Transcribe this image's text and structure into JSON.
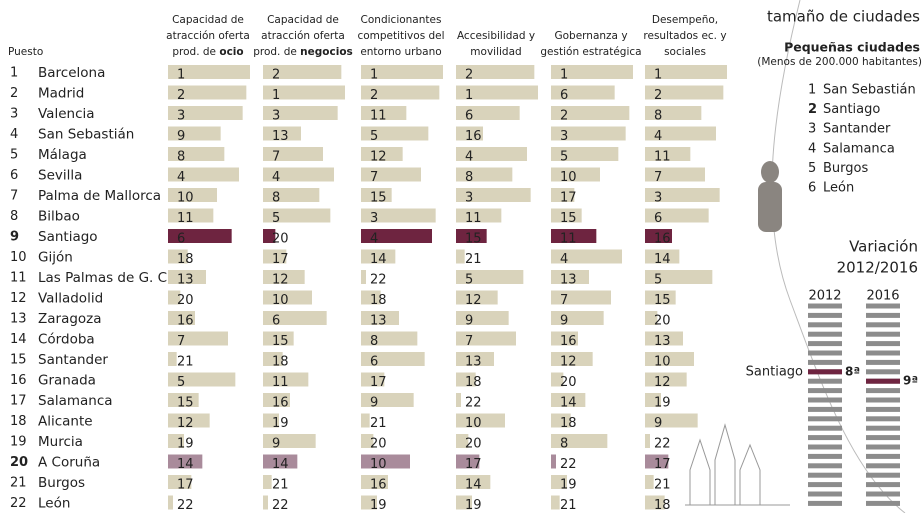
{
  "header": {
    "rank_label": "Puesto"
  },
  "table": {
    "columns": [
      {
        "lines": [
          "Capacidad de",
          "atracción oferta"
        ],
        "prefix": "prod. de ",
        "emphasis": "ocio"
      },
      {
        "lines": [
          "Capacidad de",
          "atracción oferta"
        ],
        "prefix": "prod. de ",
        "emphasis": "negocios"
      },
      {
        "lines": [
          "Condicionantes",
          "competitivos del",
          "entorno urbano"
        ]
      },
      {
        "lines": [
          "Accesibilidad y",
          "movilidad"
        ]
      },
      {
        "lines": [
          "Gobernanza y",
          "gestión estratégica"
        ]
      },
      {
        "lines": [
          "Desempeño,",
          "resultados ec. y",
          "sociales"
        ]
      }
    ],
    "bar_color": "#d9d3bb",
    "rows": [
      {
        "rank": 1,
        "city": "Barcelona",
        "scores": [
          1,
          2,
          1,
          2,
          1,
          1
        ]
      },
      {
        "rank": 2,
        "city": "Madrid",
        "scores": [
          2,
          1,
          2,
          1,
          6,
          2
        ]
      },
      {
        "rank": 3,
        "city": "Valencia",
        "scores": [
          3,
          3,
          11,
          6,
          2,
          8
        ]
      },
      {
        "rank": 4,
        "city": "San Sebastián",
        "scores": [
          9,
          13,
          5,
          16,
          3,
          4
        ]
      },
      {
        "rank": 5,
        "city": "Málaga",
        "scores": [
          8,
          7,
          12,
          4,
          5,
          11
        ]
      },
      {
        "rank": 6,
        "city": "Sevilla",
        "scores": [
          4,
          4,
          7,
          8,
          10,
          7
        ]
      },
      {
        "rank": 7,
        "city": "Palma de Mallorca",
        "scores": [
          10,
          8,
          15,
          3,
          17,
          3
        ]
      },
      {
        "rank": 8,
        "city": "Bilbao",
        "scores": [
          11,
          5,
          3,
          11,
          15,
          6
        ]
      },
      {
        "rank": 9,
        "city": "Santiago",
        "scores": [
          6,
          20,
          4,
          15,
          11,
          16
        ],
        "color": "#6e2440"
      },
      {
        "rank": 10,
        "city": "Gijón",
        "scores": [
          18,
          17,
          14,
          21,
          4,
          14
        ]
      },
      {
        "rank": 11,
        "city": "Las Palmas de G. C.",
        "scores": [
          13,
          12,
          22,
          5,
          13,
          5
        ]
      },
      {
        "rank": 12,
        "city": "Valladolid",
        "scores": [
          20,
          10,
          18,
          12,
          7,
          15
        ]
      },
      {
        "rank": 13,
        "city": "Zaragoza",
        "scores": [
          16,
          6,
          13,
          9,
          9,
          20
        ]
      },
      {
        "rank": 14,
        "city": "Córdoba",
        "scores": [
          7,
          15,
          8,
          7,
          16,
          13
        ]
      },
      {
        "rank": 15,
        "city": "Santander",
        "scores": [
          21,
          18,
          6,
          13,
          12,
          10
        ]
      },
      {
        "rank": 16,
        "city": "Granada",
        "scores": [
          5,
          11,
          17,
          18,
          20,
          12
        ]
      },
      {
        "rank": 17,
        "city": "Salamanca",
        "scores": [
          15,
          16,
          9,
          22,
          14,
          19
        ]
      },
      {
        "rank": 18,
        "city": "Alicante",
        "scores": [
          12,
          19,
          21,
          10,
          18,
          9
        ]
      },
      {
        "rank": 19,
        "city": "Murcia",
        "scores": [
          19,
          9,
          20,
          20,
          8,
          22
        ]
      },
      {
        "rank": 20,
        "city": "A Coruña",
        "scores": [
          14,
          14,
          10,
          17,
          22,
          17
        ],
        "color": "#a98b9b"
      },
      {
        "rank": 21,
        "city": "Burgos",
        "scores": [
          17,
          21,
          16,
          14,
          19,
          21
        ]
      },
      {
        "rank": 22,
        "city": "León",
        "scores": [
          22,
          22,
          19,
          19,
          21,
          18
        ]
      }
    ]
  },
  "side": {
    "title": "tamaño de ciudades",
    "small_cities": {
      "title": "Pequeñas ciudades",
      "subtitle": "(Menos de 200.000 habitantes)",
      "items": [
        {
          "rank": 1,
          "city": "San Sebastián"
        },
        {
          "rank": 2,
          "city": "Santiago"
        },
        {
          "rank": 3,
          "city": "Santander"
        },
        {
          "rank": 4,
          "city": "Salamanca"
        },
        {
          "rank": 5,
          "city": "Burgos"
        },
        {
          "rank": 6,
          "city": "León"
        }
      ]
    },
    "variation": {
      "title": [
        "Variación",
        "2012/2016"
      ],
      "years": [
        "2012",
        "2016"
      ],
      "city": "Santiago",
      "positions": [
        {
          "value": 8,
          "label": "8ª"
        },
        {
          "value": 9,
          "label": "9ª"
        }
      ],
      "highlight_color": "#6e2440"
    }
  }
}
